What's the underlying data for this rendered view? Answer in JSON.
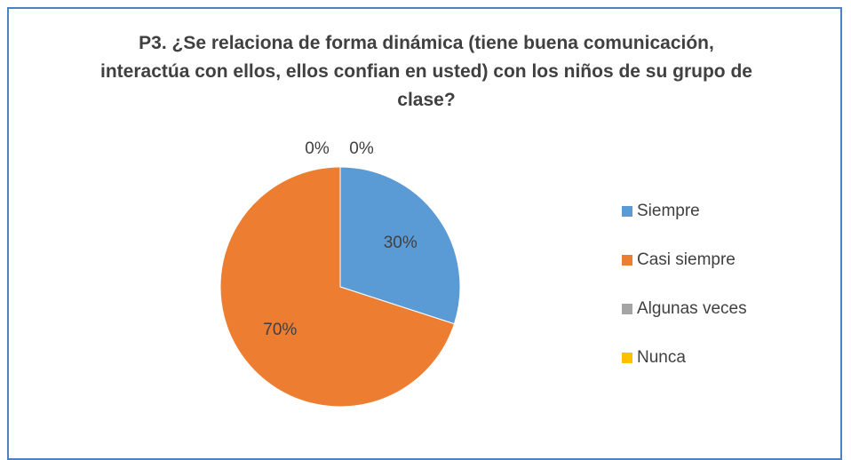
{
  "chart_data": {
    "type": "pie",
    "title": "P3. ¿Se relaciona de forma dinámica (tiene buena comunicación, interactúa con ellos, ellos confian en usted) con los niños de su grupo de clase?",
    "categories": [
      "Siempre",
      "Casi siempre",
      "Algunas veces",
      "Nunca"
    ],
    "values": [
      30,
      70,
      0,
      0
    ],
    "value_labels": [
      "30%",
      "70%",
      "0%",
      "0%"
    ],
    "colors": [
      "#5b9bd5",
      "#ed7d31",
      "#a5a5a5",
      "#ffc000"
    ],
    "legend": "right"
  }
}
